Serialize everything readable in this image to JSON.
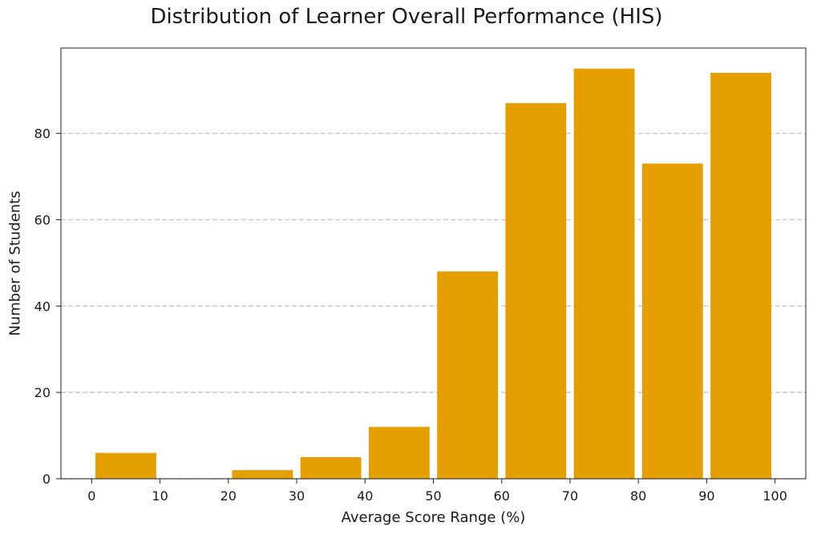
{
  "chart_data": {
    "type": "bar",
    "title": "Distribution of Learner Overall Performance (HIS)",
    "xlabel": "Average Score Range (%)",
    "ylabel": "Number of Students",
    "bins": [
      {
        "start": 0,
        "end": 10,
        "value": 6
      },
      {
        "start": 10,
        "end": 20,
        "value": 0
      },
      {
        "start": 20,
        "end": 30,
        "value": 2
      },
      {
        "start": 30,
        "end": 40,
        "value": 5
      },
      {
        "start": 40,
        "end": 50,
        "value": 12
      },
      {
        "start": 50,
        "end": 60,
        "value": 48
      },
      {
        "start": 60,
        "end": 70,
        "value": 87
      },
      {
        "start": 70,
        "end": 80,
        "value": 95
      },
      {
        "start": 80,
        "end": 90,
        "value": 73
      },
      {
        "start": 90,
        "end": 100,
        "value": 94
      }
    ],
    "xlim": [
      -4.5,
      104.5
    ],
    "ylim": [
      0,
      99.75
    ],
    "x_ticks": [
      0,
      10,
      20,
      30,
      40,
      50,
      60,
      70,
      80,
      90,
      100
    ],
    "y_ticks": [
      0,
      20,
      40,
      60,
      80
    ],
    "bar_color": "#E69F00",
    "grid": "y-dashed",
    "legend": "none"
  }
}
